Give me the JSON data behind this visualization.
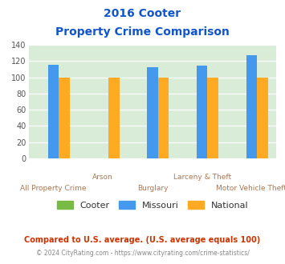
{
  "title_line1": "2016 Cooter",
  "title_line2": "Property Crime Comparison",
  "cooter_values": [
    0,
    0,
    0,
    0,
    0
  ],
  "missouri_values": [
    115,
    0,
    112,
    114,
    127
  ],
  "national_values": [
    100,
    100,
    100,
    100,
    100
  ],
  "cooter_color": "#77bb44",
  "missouri_color": "#4499ee",
  "national_color": "#ffaa22",
  "ylim": [
    0,
    140
  ],
  "yticks": [
    0,
    20,
    40,
    60,
    80,
    100,
    120,
    140
  ],
  "bg_color": "#d8ecd8",
  "grid_color": "#ffffff",
  "title_color": "#1155cc",
  "xlabel_color": "#aa7755",
  "footer1": "Compared to U.S. average. (U.S. average equals 100)",
  "footer2": "© 2024 CityRating.com - https://www.cityrating.com/crime-statistics/",
  "footer1_color": "#cc3300",
  "footer2_color": "#888888",
  "bar_width": 0.22
}
